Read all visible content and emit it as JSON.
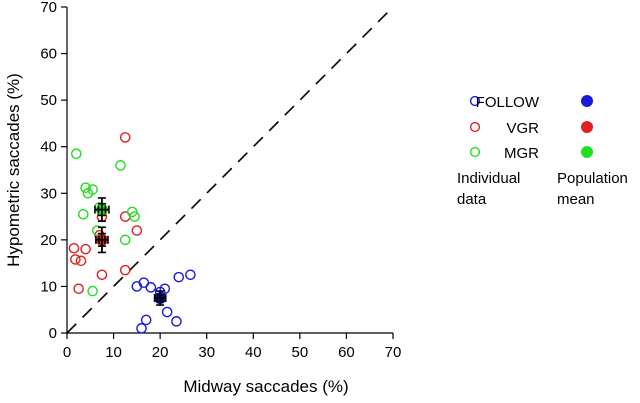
{
  "chart_data": {
    "type": "scatter",
    "xlabel": "Midway saccades (%)",
    "ylabel": "Hypometric saccades (%)",
    "xlim": [
      0,
      70
    ],
    "ylim": [
      0,
      70
    ],
    "xticks": [
      "0",
      "10",
      "20",
      "30",
      "40",
      "50",
      "60",
      "70"
    ],
    "yticks": [
      "0",
      "10",
      "20",
      "30",
      "40",
      "50",
      "60",
      "70"
    ],
    "grid": false,
    "legend_placement": "right",
    "identity_line": {
      "style": "dashed",
      "from": [
        0,
        0
      ],
      "to": [
        70,
        70
      ]
    },
    "series": [
      {
        "name": "FOLLOW",
        "color": "#1a1ad6",
        "points": [
          [
            15,
            10
          ],
          [
            16.5,
            10.8
          ],
          [
            18,
            9.8
          ],
          [
            20,
            8.8
          ],
          [
            21,
            9.5
          ],
          [
            21.5,
            4.5
          ],
          [
            16,
            1
          ],
          [
            17,
            2.8
          ],
          [
            23.5,
            2.5
          ],
          [
            24,
            12
          ],
          [
            26.5,
            12.5
          ],
          [
            20,
            7.5
          ]
        ],
        "mean": {
          "x": 20,
          "y": 7.5,
          "err_x": 1.2,
          "err_y": 1.5
        }
      },
      {
        "name": "VGR",
        "color": "#e02020",
        "points": [
          [
            1.5,
            18.2
          ],
          [
            1.8,
            15.8
          ],
          [
            2.5,
            9.5
          ],
          [
            3,
            15.5
          ],
          [
            4,
            18
          ],
          [
            7,
            21
          ],
          [
            7.5,
            25
          ],
          [
            7.5,
            12.5
          ],
          [
            12.5,
            42
          ],
          [
            12.5,
            25
          ],
          [
            12.5,
            13.5
          ],
          [
            15,
            22
          ]
        ],
        "mean": {
          "x": 7.5,
          "y": 20,
          "err_x": 1.3,
          "err_y": 2.7
        }
      },
      {
        "name": "MGR",
        "color": "#22dd22",
        "points": [
          [
            2,
            38.5
          ],
          [
            3.5,
            25.5
          ],
          [
            4,
            31.2
          ],
          [
            4.5,
            30
          ],
          [
            5.5,
            30.8
          ],
          [
            5.5,
            9
          ],
          [
            6.5,
            22
          ],
          [
            7,
            27
          ],
          [
            11.5,
            36
          ],
          [
            12.5,
            20
          ],
          [
            14,
            26
          ],
          [
            14.5,
            25
          ]
        ],
        "mean": {
          "x": 7.5,
          "y": 26.5,
          "err_x": 1.5,
          "err_y": 2.5
        }
      }
    ]
  },
  "legend": {
    "entries": [
      {
        "label": "FOLLOW",
        "color": "#1a1ad6"
      },
      {
        "label": "VGR",
        "color": "#e02020"
      },
      {
        "label": "MGR",
        "color": "#22dd22"
      }
    ],
    "individual_label_1": "Individual",
    "individual_label_2": "data",
    "population_label_1": "Population",
    "population_label_2": "mean"
  }
}
